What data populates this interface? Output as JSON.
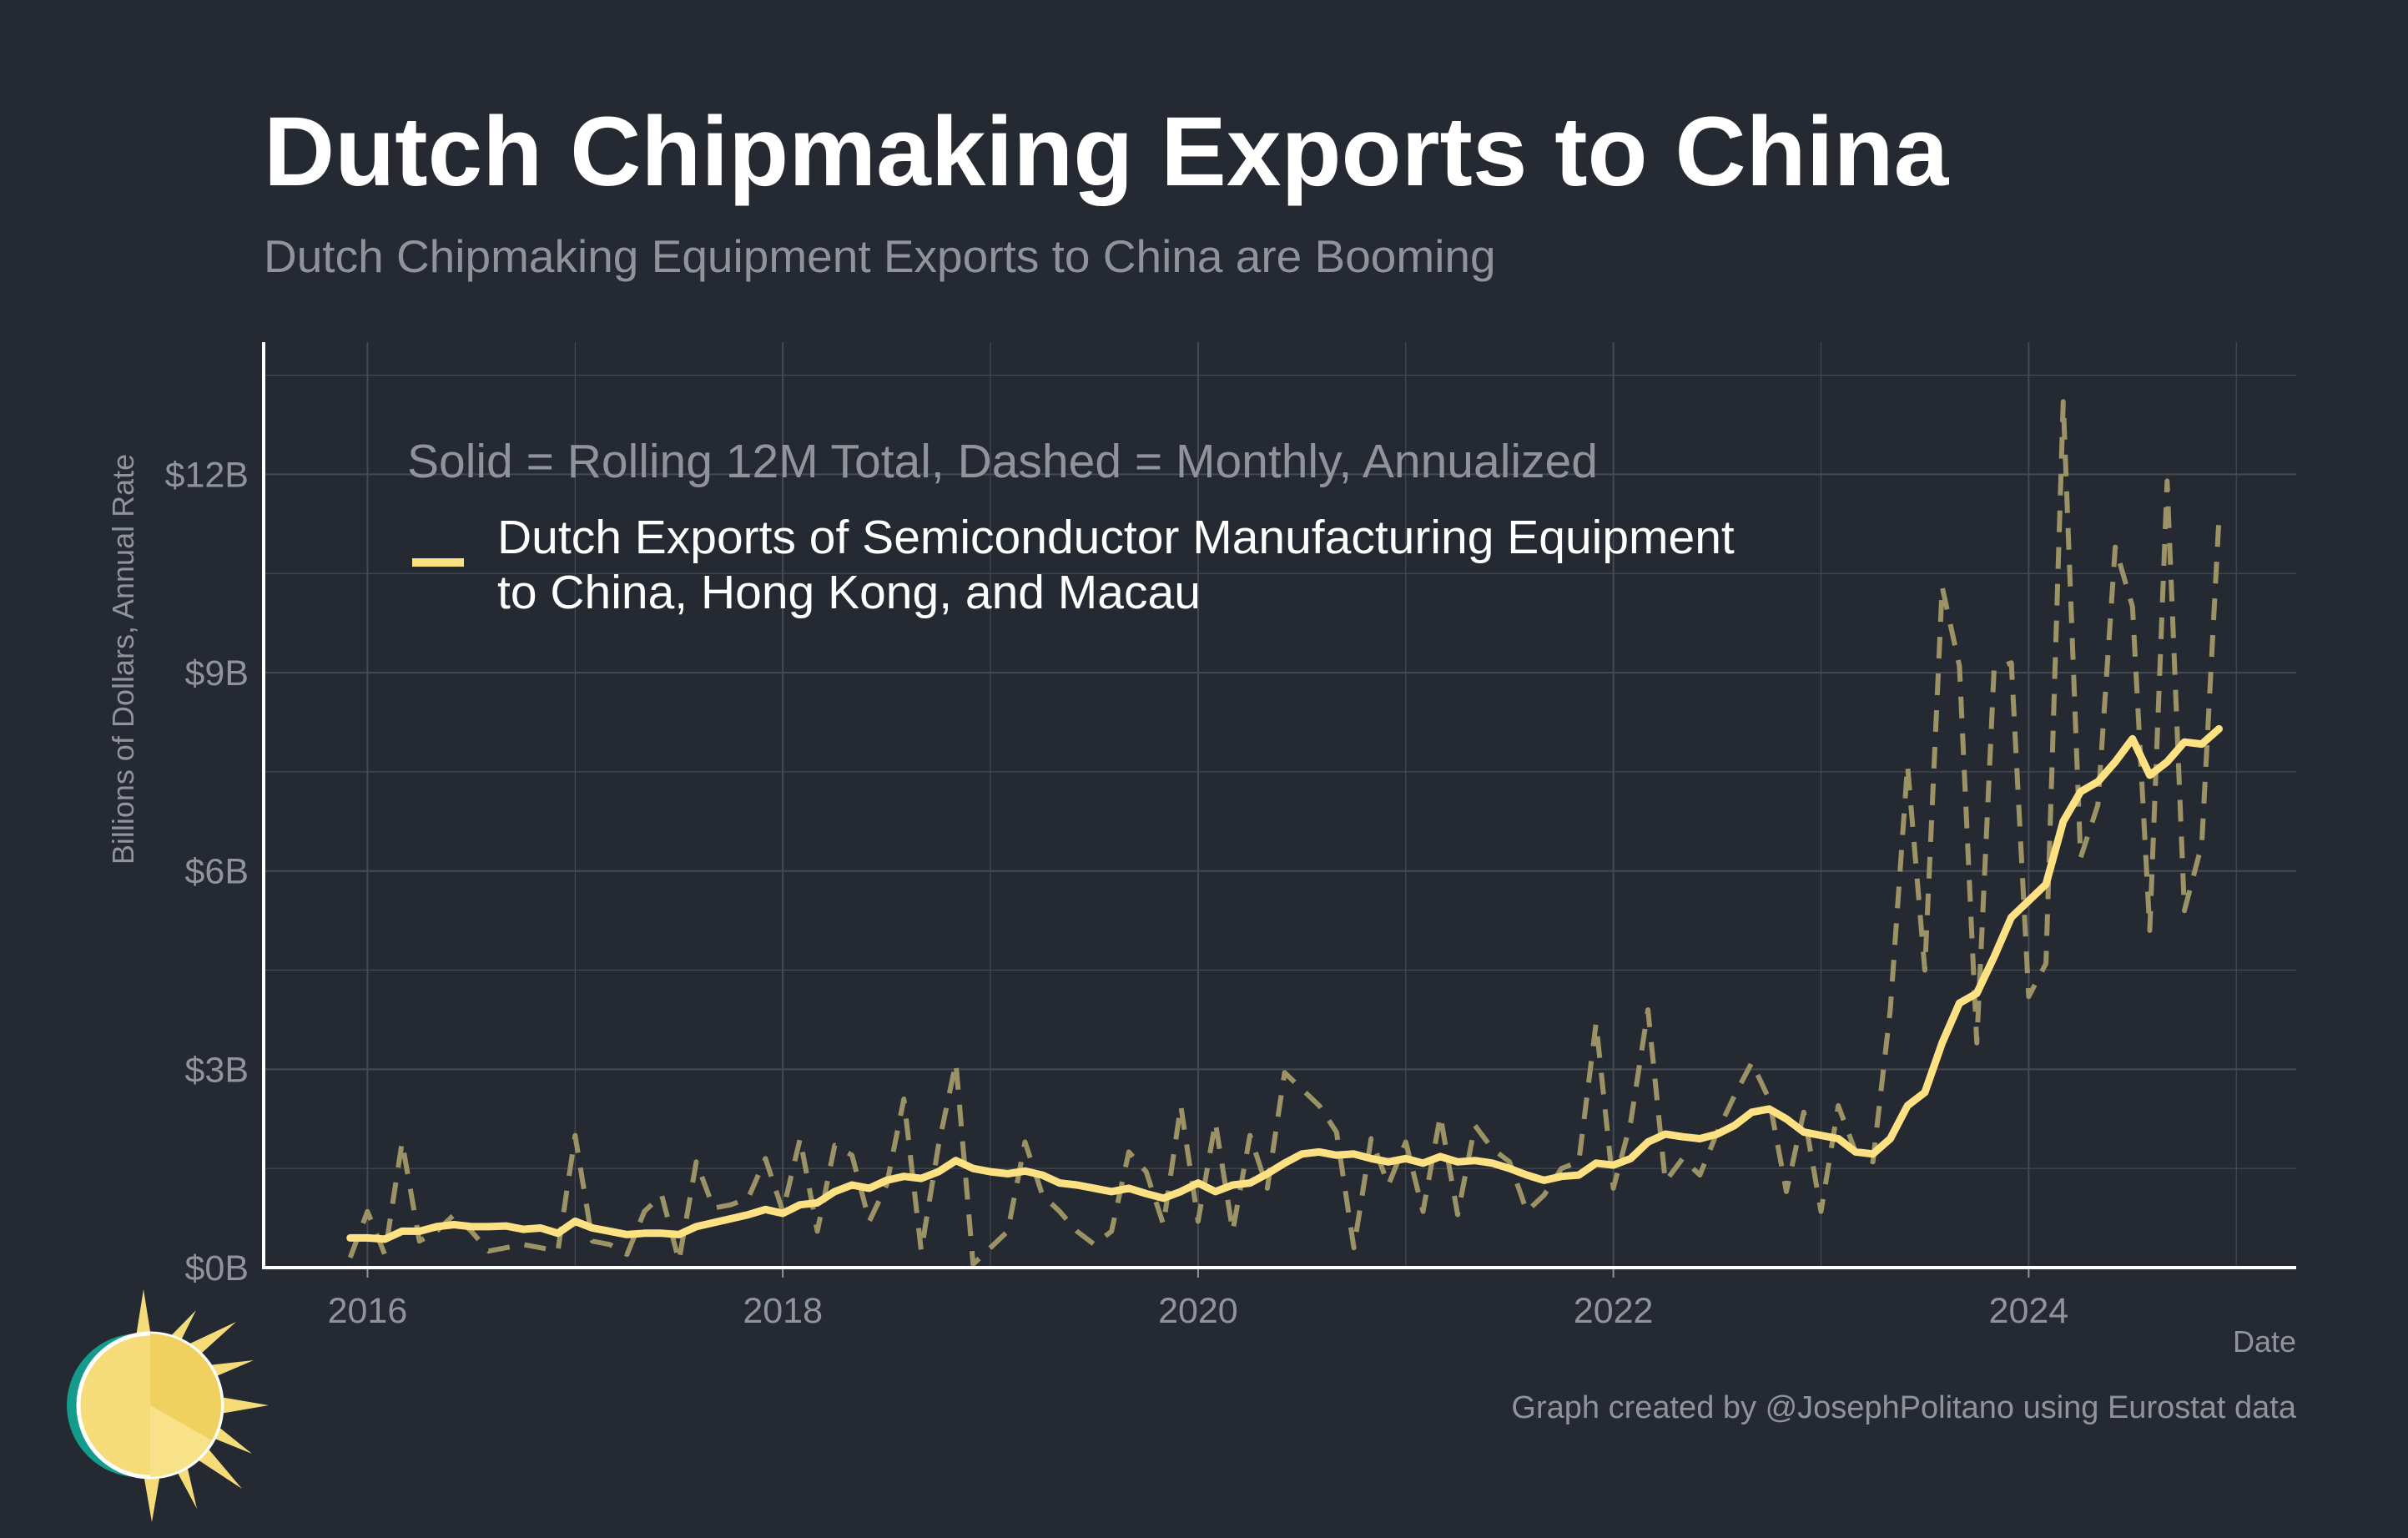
{
  "colors": {
    "background": "#252932",
    "grid": "#454a52",
    "axis": "#ffffff",
    "series": "#fde182",
    "monthly": "#9b9265",
    "title": "#ffffff",
    "muted": "#90939a",
    "logo_sun": "#f5dc78",
    "logo_ring": "#139b8c"
  },
  "chart_data": {
    "type": "line",
    "title": "Dutch Chipmaking Exports to China",
    "subtitle": "Dutch Chipmaking Equipment Exports to China are Booming",
    "xlabel": "Date",
    "ylabel": "Billions of Dollars, Annual Rate",
    "xlim": [
      "2015-07-01",
      "2025-04-15"
    ],
    "ylim": [
      0,
      14
    ],
    "x_ticks": [
      {
        "value": "2016-01-01",
        "label": "2016"
      },
      {
        "value": "2018-01-01",
        "label": "2018"
      },
      {
        "value": "2020-01-01",
        "label": "2020"
      },
      {
        "value": "2022-01-01",
        "label": "2022"
      },
      {
        "value": "2024-01-01",
        "label": "2024"
      }
    ],
    "y_ticks": [
      {
        "value": 0,
        "label": "$0B"
      },
      {
        "value": 3,
        "label": "$3B"
      },
      {
        "value": 6,
        "label": "$6B"
      },
      {
        "value": 9,
        "label": "$9B"
      },
      {
        "value": 12,
        "label": "$12B"
      }
    ],
    "grid": true,
    "legend_note": "Solid = Rolling 12M Total, Dashed = Monthly, Annualized",
    "legend_placement": "top-left",
    "legend_label_lines": [
      "Dutch Exports of Semiconductor Manufacturing Equipment",
      "to China, Hong Kong, and Macau"
    ],
    "series": [
      {
        "name": "Dutch Exports of Semiconductor Manufacturing Equipment to China, Hong Kong, and Macau",
        "style": "solid",
        "x": [
          "2015-12",
          "2016-01",
          "2016-02",
          "2016-03",
          "2016-04",
          "2016-05",
          "2016-06",
          "2016-07",
          "2016-08",
          "2016-09",
          "2016-10",
          "2016-11",
          "2016-12",
          "2017-01",
          "2017-02",
          "2017-03",
          "2017-04",
          "2017-05",
          "2017-06",
          "2017-07",
          "2017-08",
          "2017-09",
          "2017-10",
          "2017-11",
          "2017-12",
          "2018-01",
          "2018-02",
          "2018-03",
          "2018-04",
          "2018-05",
          "2018-06",
          "2018-07",
          "2018-08",
          "2018-09",
          "2018-10",
          "2018-11",
          "2018-12",
          "2019-01",
          "2019-02",
          "2019-03",
          "2019-04",
          "2019-05",
          "2019-06",
          "2019-07",
          "2019-08",
          "2019-09",
          "2019-10",
          "2019-11",
          "2019-12",
          "2020-01",
          "2020-02",
          "2020-03",
          "2020-04",
          "2020-05",
          "2020-06",
          "2020-07",
          "2020-08",
          "2020-09",
          "2020-10",
          "2020-11",
          "2020-12",
          "2021-01",
          "2021-02",
          "2021-03",
          "2021-04",
          "2021-05",
          "2021-06",
          "2021-07",
          "2021-08",
          "2021-09",
          "2021-10",
          "2021-11",
          "2021-12",
          "2022-01",
          "2022-02",
          "2022-03",
          "2022-04",
          "2022-05",
          "2022-06",
          "2022-07",
          "2022-08",
          "2022-09",
          "2022-10",
          "2022-11",
          "2022-12",
          "2023-01",
          "2023-02",
          "2023-03",
          "2023-04",
          "2023-05",
          "2023-06",
          "2023-07",
          "2023-08",
          "2023-09",
          "2023-10",
          "2023-11",
          "2023-12",
          "2024-01",
          "2024-02",
          "2024-03",
          "2024-04",
          "2024-05",
          "2024-06",
          "2024-07",
          "2024-08",
          "2024-09",
          "2024-10",
          "2024-11",
          "2024-12"
        ],
        "values": [
          0.45,
          0.45,
          0.43,
          0.55,
          0.55,
          0.62,
          0.65,
          0.62,
          0.62,
          0.63,
          0.58,
          0.6,
          0.52,
          0.7,
          0.6,
          0.55,
          0.5,
          0.52,
          0.52,
          0.5,
          0.62,
          0.68,
          0.74,
          0.8,
          0.88,
          0.82,
          0.95,
          0.98,
          1.15,
          1.25,
          1.2,
          1.32,
          1.38,
          1.35,
          1.45,
          1.62,
          1.5,
          1.45,
          1.42,
          1.46,
          1.4,
          1.28,
          1.25,
          1.2,
          1.15,
          1.2,
          1.12,
          1.05,
          1.15,
          1.28,
          1.15,
          1.25,
          1.28,
          1.42,
          1.58,
          1.72,
          1.75,
          1.7,
          1.72,
          1.65,
          1.6,
          1.65,
          1.58,
          1.68,
          1.6,
          1.62,
          1.58,
          1.5,
          1.4,
          1.32,
          1.38,
          1.4,
          1.58,
          1.55,
          1.65,
          1.9,
          2.02,
          1.98,
          1.95,
          2.02,
          2.15,
          2.35,
          2.4,
          2.25,
          2.05,
          2.0,
          1.95,
          1.75,
          1.72,
          1.95,
          2.45,
          2.65,
          3.4,
          4.0,
          4.15,
          4.7,
          5.3,
          5.55,
          5.8,
          6.75,
          7.2,
          7.35,
          7.65,
          8.0,
          7.45,
          7.65,
          7.95,
          7.92,
          8.15
        ]
      },
      {
        "name": "Dutch Exports of Semiconductor Manufacturing Equipment to China, Hong Kong, and Macau",
        "style": "dashed",
        "x": [
          "2015-12",
          "2016-01",
          "2016-02",
          "2016-03",
          "2016-04",
          "2016-05",
          "2016-06",
          "2016-07",
          "2016-08",
          "2016-09",
          "2016-10",
          "2016-11",
          "2016-12",
          "2017-01",
          "2017-02",
          "2017-03",
          "2017-04",
          "2017-05",
          "2017-06",
          "2017-07",
          "2017-08",
          "2017-09",
          "2017-10",
          "2017-11",
          "2017-12",
          "2018-01",
          "2018-02",
          "2018-03",
          "2018-04",
          "2018-05",
          "2018-06",
          "2018-07",
          "2018-08",
          "2018-09",
          "2018-10",
          "2018-11",
          "2018-12",
          "2019-01",
          "2019-02",
          "2019-03",
          "2019-04",
          "2019-05",
          "2019-06",
          "2019-07",
          "2019-08",
          "2019-09",
          "2019-10",
          "2019-11",
          "2019-12",
          "2020-01",
          "2020-02",
          "2020-03",
          "2020-04",
          "2020-05",
          "2020-06",
          "2020-07",
          "2020-08",
          "2020-09",
          "2020-10",
          "2020-11",
          "2020-12",
          "2021-01",
          "2021-02",
          "2021-03",
          "2021-04",
          "2021-05",
          "2021-06",
          "2021-07",
          "2021-08",
          "2021-09",
          "2021-10",
          "2021-11",
          "2021-12",
          "2022-01",
          "2022-02",
          "2022-03",
          "2022-04",
          "2022-05",
          "2022-06",
          "2022-07",
          "2022-08",
          "2022-09",
          "2022-10",
          "2022-11",
          "2022-12",
          "2023-01",
          "2023-02",
          "2023-03",
          "2023-04",
          "2023-05",
          "2023-06",
          "2023-07",
          "2023-08",
          "2023-09",
          "2023-10",
          "2023-11",
          "2023-12",
          "2024-01",
          "2024-02",
          "2024-03",
          "2024-04",
          "2024-05",
          "2024-06",
          "2024-07",
          "2024-08",
          "2024-09",
          "2024-10",
          "2024-11",
          "2024-12"
        ],
        "values": [
          0.15,
          0.85,
          0.2,
          1.9,
          0.4,
          0.55,
          0.8,
          0.55,
          0.25,
          0.3,
          0.35,
          0.3,
          0.25,
          2.0,
          0.4,
          0.35,
          0.2,
          0.85,
          1.1,
          0.1,
          1.6,
          0.9,
          0.95,
          1.05,
          1.65,
          0.85,
          1.95,
          0.55,
          1.85,
          1.7,
          0.7,
          1.25,
          2.55,
          0.25,
          1.85,
          3.1,
          0.05,
          0.3,
          0.55,
          1.9,
          1.1,
          0.85,
          0.55,
          0.35,
          0.55,
          1.75,
          1.45,
          0.65,
          2.45,
          0.7,
          2.2,
          0.55,
          2.0,
          1.2,
          2.95,
          2.7,
          2.45,
          2.05,
          0.3,
          1.95,
          1.25,
          1.9,
          0.85,
          2.3,
          0.8,
          2.15,
          1.8,
          1.6,
          0.85,
          1.1,
          1.5,
          1.6,
          3.7,
          1.2,
          2.2,
          3.9,
          1.3,
          1.65,
          1.4,
          2.05,
          2.6,
          3.1,
          2.55,
          1.15,
          2.35,
          0.85,
          2.45,
          1.75,
          1.6,
          3.9,
          7.6,
          4.5,
          10.3,
          9.1,
          3.4,
          9.05,
          9.15,
          4.1,
          4.6,
          13.1,
          6.2,
          7.0,
          10.9,
          10.0,
          5.1,
          11.9,
          5.4,
          6.4,
          11.35
        ]
      }
    ]
  },
  "footer": {
    "x_axis_label": "Date",
    "credit": "Graph created by @JosephPolitano using Eurostat data"
  },
  "logo": {
    "icon": "sun-logo-icon"
  }
}
